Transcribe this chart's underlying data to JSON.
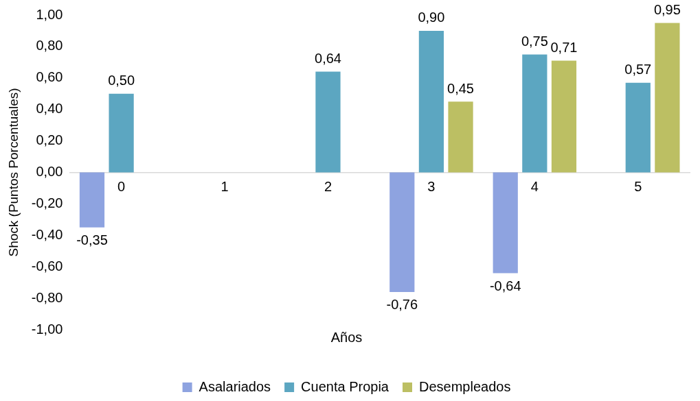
{
  "chart_data": {
    "type": "bar",
    "xlabel": "Años",
    "ylabel": "Shock (Puntos Porcentuales)",
    "categories": [
      "0",
      "1",
      "2",
      "3",
      "4",
      "5"
    ],
    "series": [
      {
        "name": "Asalariados",
        "color": "#8ea3e0",
        "values": [
          -0.35,
          null,
          null,
          -0.76,
          -0.64,
          null
        ],
        "value_labels": [
          "-0,35",
          null,
          null,
          "-0,76",
          "-0,64",
          null
        ]
      },
      {
        "name": "Cuenta Propia",
        "color": "#5ca6c1",
        "values": [
          0.5,
          null,
          0.64,
          0.9,
          0.75,
          0.57
        ],
        "value_labels": [
          "0,50",
          null,
          "0,64",
          "0,90",
          "0,75",
          "0,57"
        ]
      },
      {
        "name": "Desempleados",
        "color": "#bcbf63",
        "values": [
          null,
          null,
          null,
          0.45,
          0.71,
          0.95
        ],
        "value_labels": [
          null,
          null,
          null,
          "0,45",
          "0,71",
          "0,95"
        ]
      }
    ],
    "ylim": [
      -1,
      1
    ],
    "yticks": [
      {
        "value": -1,
        "label": "-1,00"
      },
      {
        "value": -0.8,
        "label": "-0,80"
      },
      {
        "value": -0.6,
        "label": "-0,60"
      },
      {
        "value": -0.4,
        "label": "-0,40"
      },
      {
        "value": -0.2,
        "label": "-0,20"
      },
      {
        "value": 0,
        "label": "0,00"
      },
      {
        "value": 0.2,
        "label": "0,20"
      },
      {
        "value": 0.4,
        "label": "0,40"
      },
      {
        "value": 0.6,
        "label": "0,60"
      },
      {
        "value": 0.8,
        "label": "0,80"
      },
      {
        "value": 1,
        "label": "1,00"
      }
    ],
    "grid": false,
    "legend": "bottom"
  }
}
